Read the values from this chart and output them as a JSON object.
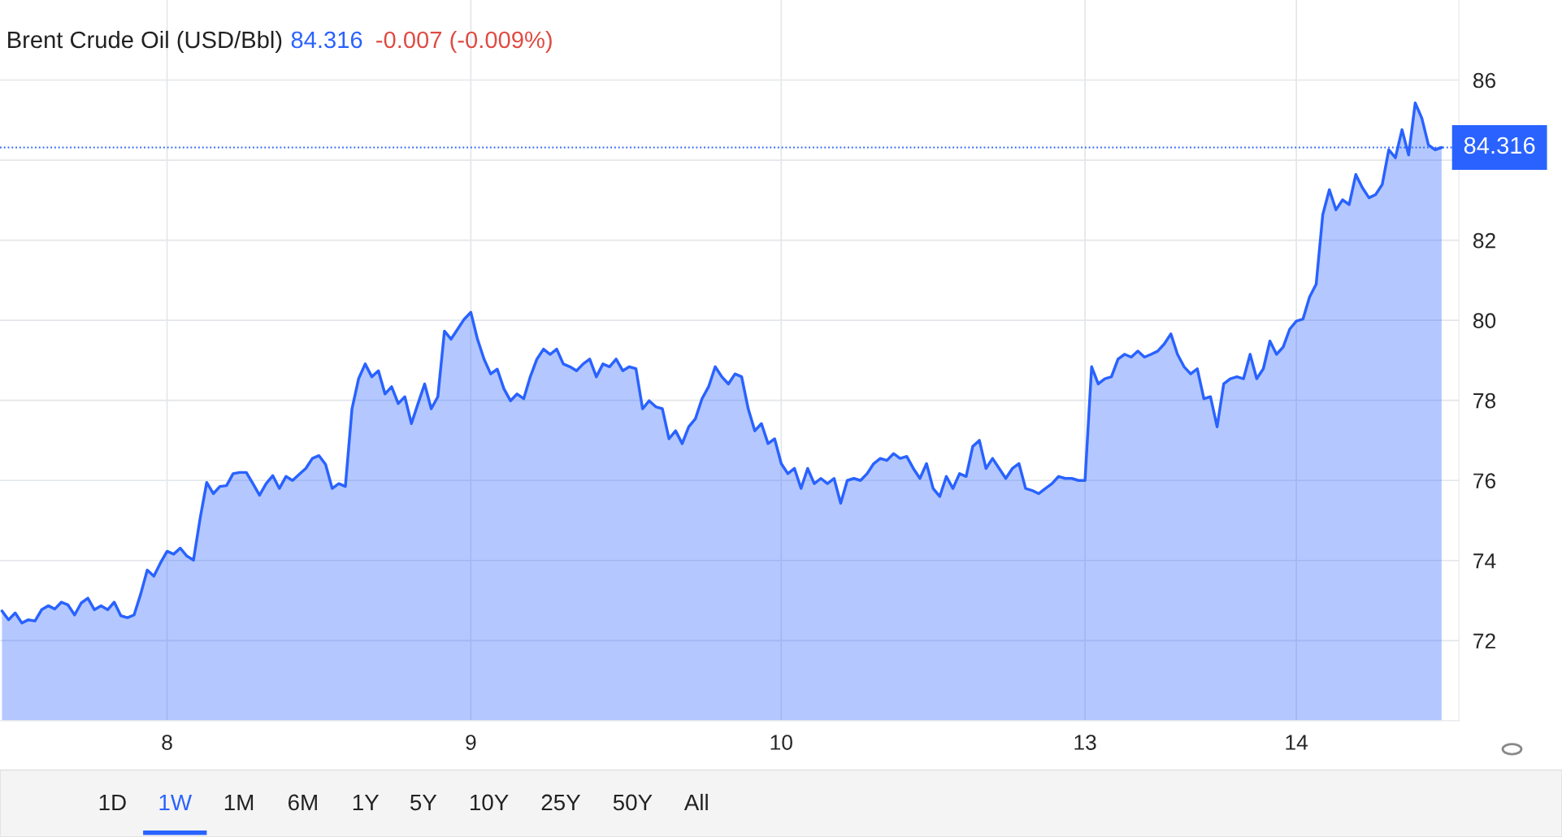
{
  "chart_data": {
    "type": "area",
    "title": "Brent Crude Oil (USD/Bbl)",
    "annotations": [
      "84.316",
      "-0.007 (-0.009%)",
      "1D",
      "1W",
      "1M",
      "6M",
      "1Y",
      "5Y",
      "10Y",
      "25Y",
      "50Y",
      "All"
    ],
    "categories": [
      null,
      null,
      null,
      null,
      null,
      null,
      null,
      null,
      null,
      null,
      null,
      null,
      null,
      null,
      null,
      null,
      null,
      null,
      null,
      null,
      null,
      null,
      null,
      null,
      null,
      "8",
      null,
      null,
      null,
      null,
      null,
      null,
      null,
      null,
      null,
      null,
      null,
      null,
      null,
      null,
      null,
      null,
      null,
      null,
      null,
      null,
      null,
      null,
      null,
      null,
      null,
      null,
      null,
      null,
      null,
      null,
      null,
      null,
      null,
      null,
      null,
      null,
      null,
      null,
      null,
      null,
      null,
      null,
      null,
      null,
      null,
      "9",
      null,
      null,
      null,
      null,
      null,
      null,
      null,
      null,
      null,
      null,
      null,
      null,
      null,
      null,
      null,
      null,
      null,
      null,
      null,
      null,
      null,
      null,
      null,
      null,
      null,
      null,
      null,
      null,
      null,
      null,
      null,
      null,
      null,
      null,
      null,
      null,
      null,
      null,
      null,
      null,
      null,
      null,
      null,
      null,
      null,
      null,
      "10",
      null,
      null,
      null,
      null,
      null,
      null,
      null,
      null,
      null,
      null,
      null,
      null,
      null,
      null,
      null,
      null,
      null,
      null,
      null,
      null,
      null,
      null,
      null,
      null,
      null,
      null,
      null,
      null,
      null,
      null,
      null,
      null,
      null,
      null,
      null,
      null,
      null,
      null,
      null,
      null,
      null,
      null,
      null,
      null,
      null,
      "13",
      null,
      null,
      null,
      null,
      null,
      null,
      null,
      null,
      null,
      null,
      null,
      null,
      null,
      null,
      null,
      null,
      null,
      null,
      null,
      null,
      null,
      null,
      null,
      null,
      null,
      null,
      null,
      null,
      null,
      null,
      null,
      "14",
      null,
      null,
      null,
      null,
      null,
      null,
      null,
      null,
      null,
      null,
      null,
      null,
      null,
      null,
      null,
      null,
      null,
      null,
      null,
      null,
      null,
      null
    ],
    "series": [
      {
        "color": "#2962ff",
        "values": [
          72.74,
          72.52,
          72.69,
          72.44,
          72.52,
          72.49,
          72.77,
          72.87,
          72.79,
          72.96,
          72.89,
          72.64,
          72.94,
          73.06,
          72.77,
          72.87,
          72.77,
          72.96,
          72.62,
          72.57,
          72.64,
          73.16,
          73.76,
          73.61,
          73.94,
          74.23,
          74.16,
          74.31,
          74.11,
          74.01,
          75.05,
          75.95,
          75.67,
          75.85,
          75.87,
          76.17,
          76.2,
          76.2,
          75.92,
          75.63,
          75.92,
          76.12,
          75.8,
          76.1,
          76.0,
          76.15,
          76.3,
          76.55,
          76.62,
          76.4,
          75.8,
          75.92,
          75.85,
          77.79,
          78.54,
          78.91,
          78.59,
          78.74,
          78.16,
          78.34,
          77.92,
          78.09,
          77.42,
          77.92,
          78.41,
          77.79,
          78.09,
          79.73,
          79.53,
          79.78,
          80.03,
          80.2,
          79.53,
          79.03,
          78.66,
          78.78,
          78.29,
          77.99,
          78.16,
          78.04,
          78.59,
          79.03,
          79.28,
          79.15,
          79.28,
          78.91,
          78.84,
          78.74,
          78.91,
          79.03,
          78.59,
          78.91,
          78.84,
          79.03,
          78.74,
          78.84,
          78.79,
          77.79,
          77.99,
          77.84,
          77.79,
          77.04,
          77.24,
          76.92,
          77.34,
          77.54,
          78.04,
          78.34,
          78.84,
          78.59,
          78.41,
          78.66,
          78.59,
          77.79,
          77.24,
          77.42,
          76.92,
          77.04,
          76.42,
          76.17,
          76.3,
          75.8,
          76.3,
          75.92,
          76.05,
          75.92,
          76.05,
          75.43,
          76.0,
          76.05,
          76.0,
          76.17,
          76.42,
          76.55,
          76.5,
          76.67,
          76.55,
          76.6,
          76.3,
          76.05,
          76.42,
          75.8,
          75.6,
          76.1,
          75.8,
          76.17,
          76.1,
          76.85,
          77.0,
          76.3,
          76.55,
          76.3,
          76.05,
          76.3,
          76.42,
          75.8,
          75.75,
          75.67,
          75.8,
          75.92,
          76.1,
          76.05,
          76.05,
          76.0,
          76.0,
          78.84,
          78.41,
          78.54,
          78.59,
          79.03,
          79.15,
          79.08,
          79.23,
          79.08,
          79.15,
          79.23,
          79.41,
          79.66,
          79.15,
          78.84,
          78.66,
          78.79,
          78.04,
          78.09,
          77.34,
          78.41,
          78.54,
          78.59,
          78.54,
          79.15,
          78.54,
          78.79,
          79.48,
          79.15,
          79.33,
          79.78,
          79.98,
          80.03,
          80.58,
          80.9,
          82.64,
          83.26,
          82.76,
          83.01,
          82.89,
          83.64,
          83.31,
          83.06,
          83.14,
          83.39,
          84.26,
          84.06,
          84.76,
          84.13,
          85.43,
          85.05,
          84.38,
          84.26,
          84.316
        ]
      }
    ],
    "ylim": [
      70,
      88
    ],
    "yticks": [
      72,
      74,
      76,
      78,
      80,
      82,
      {
        "value": 84,
        "label": null
      },
      86
    ],
    "ref_lines": [
      {
        "axis": "y",
        "value": 84.316,
        "label": "84.316",
        "color": "#2962ff",
        "line_style": "dotted"
      }
    ],
    "grid": true,
    "legend": false
  }
}
